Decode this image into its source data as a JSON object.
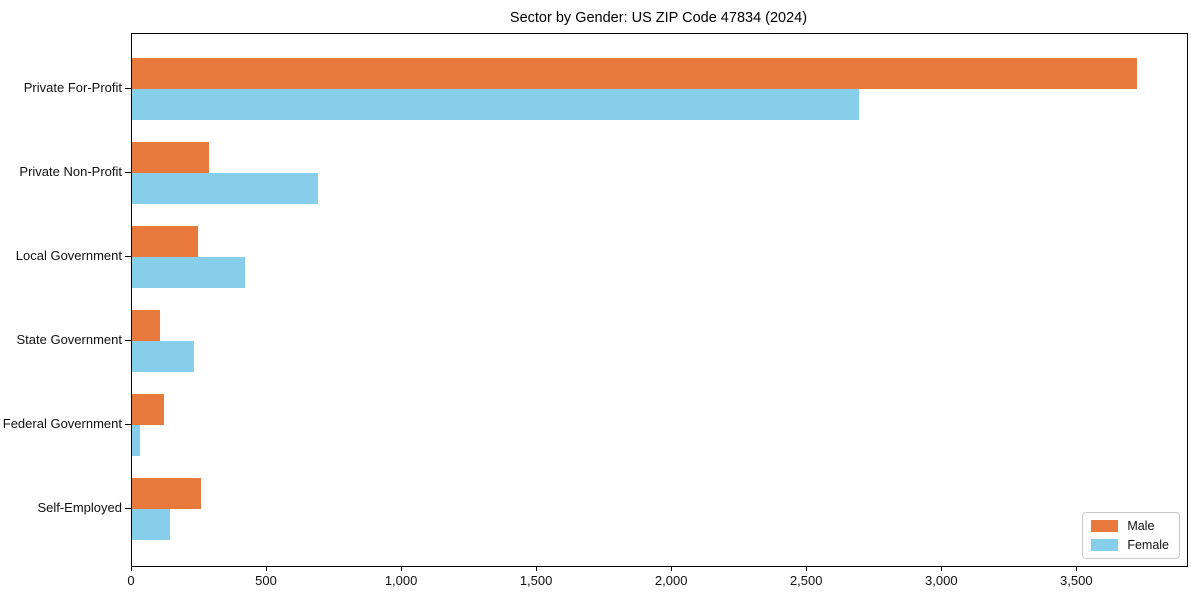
{
  "chart_data": {
    "type": "bar",
    "orientation": "horizontal",
    "title": "Sector by Gender: US ZIP Code 47834 (2024)",
    "categories": [
      "Private For-Profit",
      "Private Non-Profit",
      "Local Government",
      "State Government",
      "Federal Government",
      "Self-Employed"
    ],
    "series": [
      {
        "name": "Male",
        "color": "#e8793c",
        "values": [
          3720,
          285,
          245,
          105,
          120,
          255
        ]
      },
      {
        "name": "Female",
        "color": "#87ceeb",
        "values": [
          2690,
          690,
          420,
          230,
          30,
          140
        ]
      }
    ],
    "xlim": [
      0,
      3906
    ],
    "x_ticks": [
      0,
      500,
      1000,
      1500,
      2000,
      2500,
      3000,
      3500
    ],
    "x_tick_labels": [
      "0",
      "500",
      "1,000",
      "1,500",
      "2,000",
      "2,500",
      "3,000",
      "3,500"
    ],
    "xlabel": "",
    "ylabel": "",
    "grid": false,
    "legend_position": "lower right",
    "axis_color": "#000000"
  }
}
